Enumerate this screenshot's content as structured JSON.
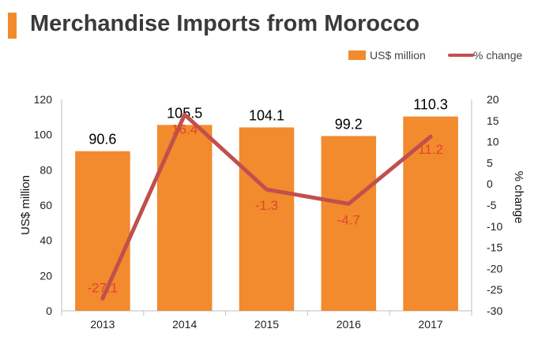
{
  "title": "Merchandise Imports from Morocco",
  "colors": {
    "accent": "#F28A2E",
    "bar": "#F28A2E",
    "line": "#C0504D",
    "pct_label": "#E0472B"
  },
  "chart_data": {
    "type": "bar",
    "categories": [
      "2013",
      "2014",
      "2015",
      "2016",
      "2017"
    ],
    "series": [
      {
        "name": "US$ million",
        "type": "bar",
        "axis": "left",
        "values": [
          90.6,
          105.5,
          104.1,
          99.2,
          110.3
        ],
        "labels": [
          "90.6",
          "105.5",
          "104.1",
          "99.2",
          "110.3"
        ]
      },
      {
        "name": "% change",
        "type": "line",
        "axis": "right",
        "values": [
          -27.1,
          16.4,
          -1.3,
          -4.7,
          11.2
        ],
        "labels": [
          "-27.1",
          "16.4",
          "-1.3",
          "-4.7",
          "11.2"
        ]
      }
    ],
    "ylabel": "US$ million",
    "y2label": "% change",
    "ylim": [
      0,
      120
    ],
    "y2lim": [
      -30,
      20
    ],
    "yticks": [
      "0",
      "20",
      "40",
      "60",
      "80",
      "100",
      "120"
    ],
    "y2ticks": [
      "-30",
      "-25",
      "-20",
      "-15",
      "-10",
      "-5",
      "0",
      "5",
      "10",
      "15",
      "20"
    ],
    "grid": false,
    "legend": "top-right"
  }
}
